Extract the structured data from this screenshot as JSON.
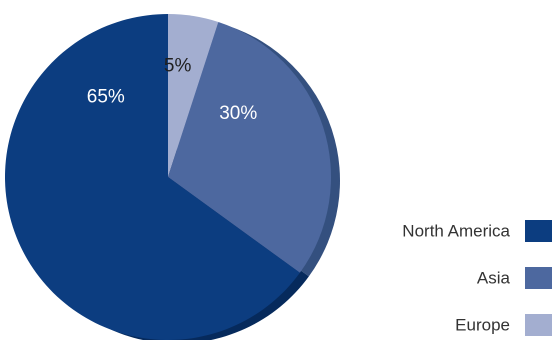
{
  "chart_data": {
    "type": "pie",
    "slices": [
      {
        "name": "North America",
        "value": 65,
        "label": "65%",
        "color": "#0c3d80",
        "side_color": "#062a5c",
        "label_color": "#ffffff"
      },
      {
        "name": "Asia",
        "value": 30,
        "label": "30%",
        "color": "#4d689f",
        "side_color": "#34507f",
        "label_color": "#ffffff"
      },
      {
        "name": "Europe",
        "value": 5,
        "label": "5%",
        "color": "#a3aed0",
        "side_color": "#7e8db8",
        "label_color": "#1f1f1f"
      }
    ],
    "legend": {
      "position": "bottom-right",
      "items": [
        {
          "label": "North America",
          "color": "#0c3d80"
        },
        {
          "label": "Asia",
          "color": "#4d689f"
        },
        {
          "label": "Europe",
          "color": "#a3aed0"
        }
      ]
    }
  }
}
